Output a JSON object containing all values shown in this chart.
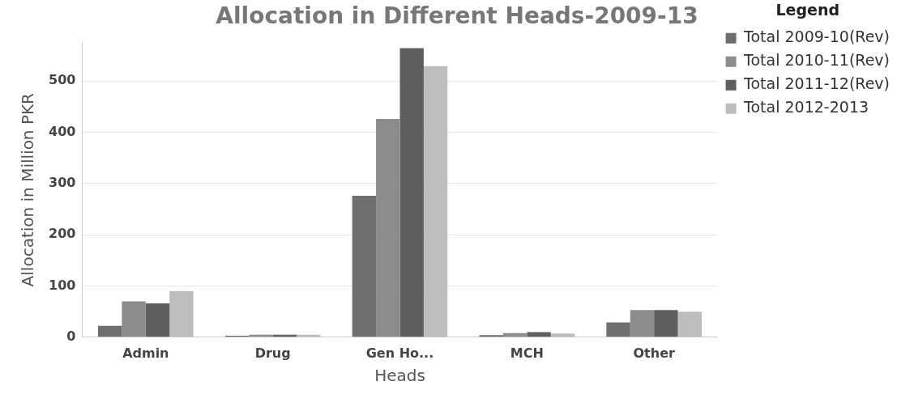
{
  "chart_data": {
    "type": "bar",
    "title": "Allocation in Different Heads-2009-13",
    "xlabel": "Heads",
    "ylabel": "Allocation in Million PKR",
    "legend_title": "Legend",
    "categories": [
      "Admin",
      "Drug",
      "Gen Ho...",
      "MCH",
      "Other"
    ],
    "series": [
      {
        "name": "Total 2009-10(Rev)",
        "color": "#6e6e6e",
        "values": [
          22,
          3,
          276,
          4,
          29
        ]
      },
      {
        "name": "Total 2010-11(Rev)",
        "color": "#8c8c8c",
        "values": [
          70,
          5,
          426,
          8,
          53
        ]
      },
      {
        "name": "Total 2011-12(Rev)",
        "color": "#5f5f5f",
        "values": [
          66,
          5,
          564,
          10,
          53
        ]
      },
      {
        "name": "Total 2012-2013",
        "color": "#bdbdbd",
        "values": [
          90,
          5,
          529,
          7,
          50
        ]
      }
    ],
    "ylim": [
      0,
      575
    ],
    "yticks": [
      0,
      100,
      200,
      300,
      400,
      500
    ],
    "grid": "y",
    "legend": "top right"
  }
}
